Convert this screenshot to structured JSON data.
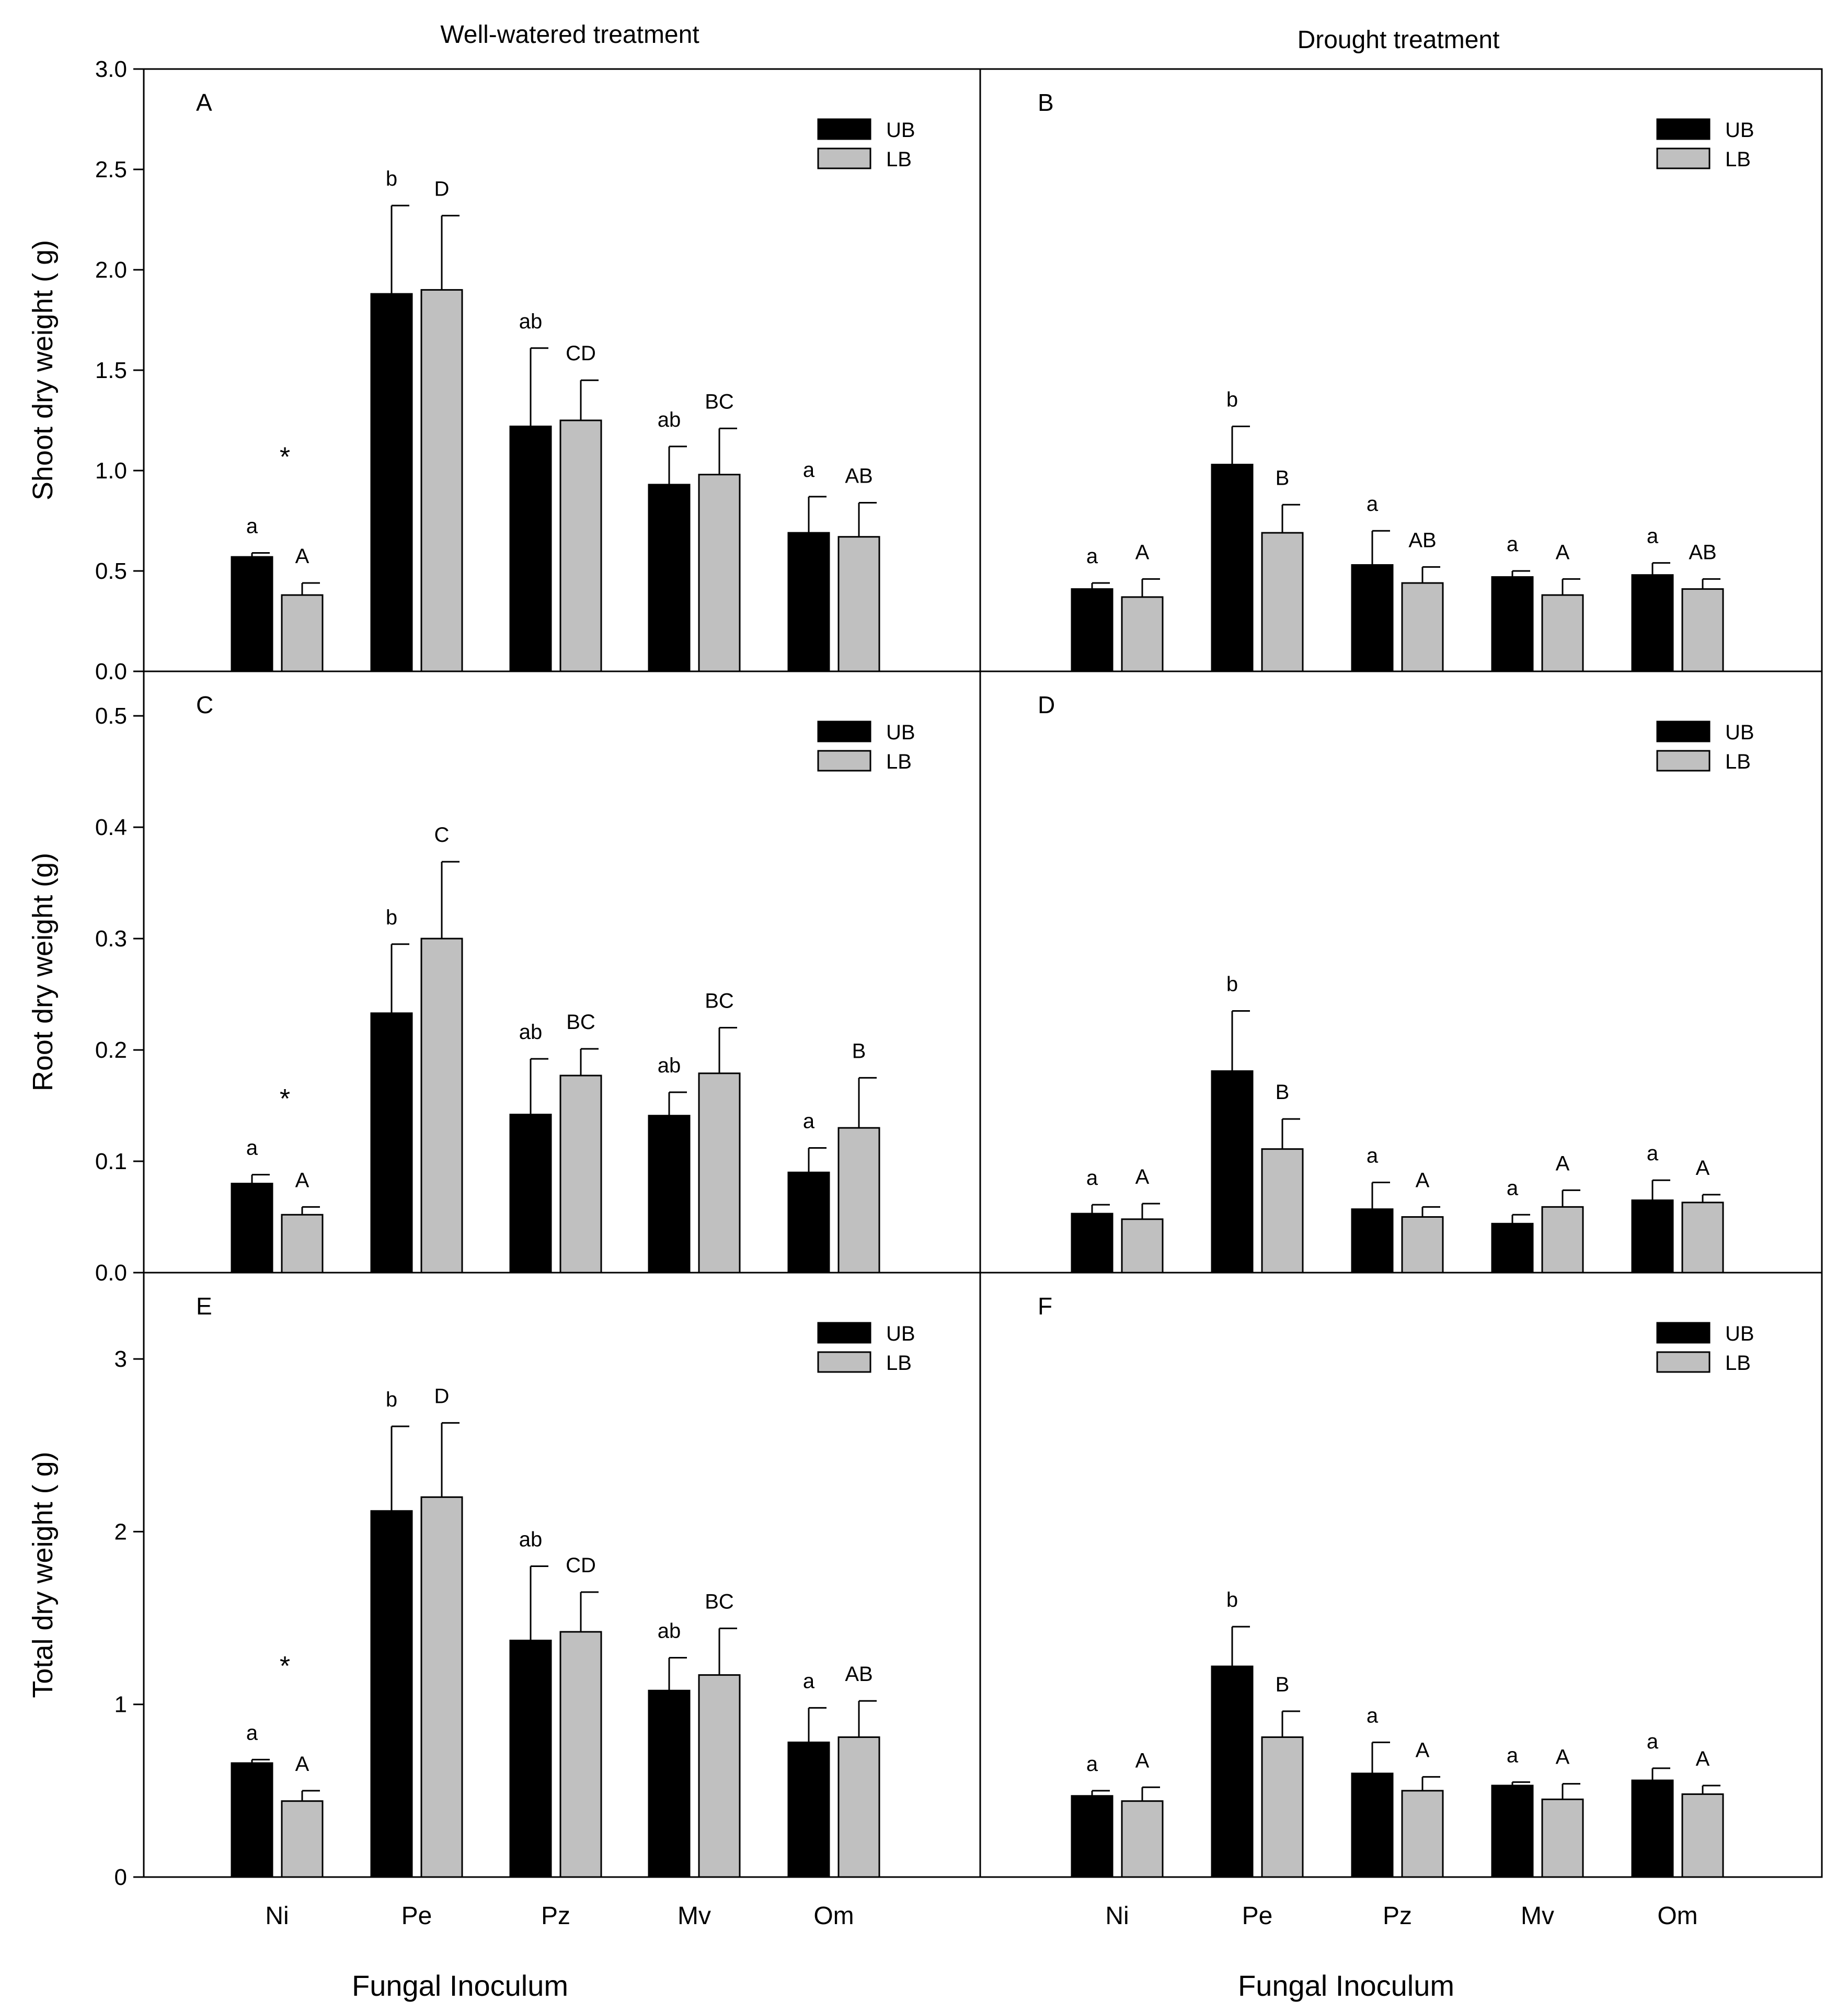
{
  "figure": {
    "column_titles": [
      "Well-watered treatment",
      "Drought treatment"
    ],
    "xlabel": "Fungal Inoculum",
    "categories": [
      "Ni",
      "Pe",
      "Pz",
      "Mv",
      "Om"
    ],
    "series_colors": {
      "UB": "#000000",
      "LB": "#c0c0c0"
    }
  },
  "chart_data": [
    {
      "type": "bar",
      "panel": "A",
      "title": "Well-watered treatment",
      "xlabel": "",
      "ylabel": "Shoot dry weight ( g)",
      "ylim": [
        0,
        3.0
      ],
      "yticks": [
        0.0,
        0.5,
        1.0,
        1.5,
        2.0,
        2.5,
        3.0
      ],
      "ytick_decimals": 1,
      "categories": [
        "Ni",
        "Pe",
        "Pz",
        "Mv",
        "Om"
      ],
      "legend": [
        "UB",
        "LB"
      ],
      "series": [
        {
          "name": "UB",
          "values": [
            0.57,
            1.88,
            1.22,
            0.93,
            0.69
          ],
          "errors": [
            0.02,
            0.44,
            0.39,
            0.19,
            0.18
          ],
          "labels": [
            "a",
            "b",
            "ab",
            "ab",
            "a"
          ]
        },
        {
          "name": "LB",
          "values": [
            0.38,
            1.9,
            1.25,
            0.98,
            0.67
          ],
          "errors": [
            0.06,
            0.37,
            0.2,
            0.23,
            0.17
          ],
          "labels": [
            "A",
            "D",
            "CD",
            "BC",
            "AB"
          ]
        }
      ],
      "star": {
        "category": "Ni",
        "text": "*",
        "y": 1.1
      }
    },
    {
      "type": "bar",
      "panel": "B",
      "title": "Drought treatment",
      "xlabel": "",
      "ylabel": "",
      "ylim": [
        0,
        3.0
      ],
      "yticks": [],
      "categories": [
        "Ni",
        "Pe",
        "Pz",
        "Mv",
        "Om"
      ],
      "legend": [
        "UB",
        "LB"
      ],
      "series": [
        {
          "name": "UB",
          "values": [
            0.41,
            1.03,
            0.53,
            0.47,
            0.48
          ],
          "errors": [
            0.03,
            0.19,
            0.17,
            0.03,
            0.06
          ],
          "labels": [
            "a",
            "b",
            "a",
            "a",
            "a"
          ]
        },
        {
          "name": "LB",
          "values": [
            0.37,
            0.69,
            0.44,
            0.38,
            0.41
          ],
          "errors": [
            0.09,
            0.14,
            0.08,
            0.08,
            0.05
          ],
          "labels": [
            "A",
            "B",
            "AB",
            "A",
            "AB"
          ]
        }
      ]
    },
    {
      "type": "bar",
      "panel": "C",
      "title": "",
      "xlabel": "",
      "ylabel": "Root dry weight (g)",
      "ylim": [
        0,
        0.54
      ],
      "yticks": [
        0.0,
        0.1,
        0.2,
        0.3,
        0.4,
        0.5
      ],
      "ytick_decimals": 1,
      "categories": [
        "Ni",
        "Pe",
        "Pz",
        "Mv",
        "Om"
      ],
      "legend": [
        "UB",
        "LB"
      ],
      "series": [
        {
          "name": "UB",
          "values": [
            0.08,
            0.233,
            0.142,
            0.141,
            0.09
          ],
          "errors": [
            0.008,
            0.062,
            0.05,
            0.021,
            0.022
          ],
          "labels": [
            "a",
            "b",
            "ab",
            "ab",
            "a"
          ]
        },
        {
          "name": "LB",
          "values": [
            0.052,
            0.3,
            0.177,
            0.179,
            0.13
          ],
          "errors": [
            0.007,
            0.069,
            0.024,
            0.041,
            0.045
          ],
          "labels": [
            "A",
            "C",
            "BC",
            "BC",
            "B"
          ]
        }
      ],
      "star": {
        "category": "Ni",
        "text": "*",
        "y": 0.162
      }
    },
    {
      "type": "bar",
      "panel": "D",
      "title": "",
      "xlabel": "",
      "ylabel": "",
      "ylim": [
        0,
        0.54
      ],
      "yticks": [],
      "categories": [
        "Ni",
        "Pe",
        "Pz",
        "Mv",
        "Om"
      ],
      "legend": [
        "UB",
        "LB"
      ],
      "series": [
        {
          "name": "UB",
          "values": [
            0.053,
            0.181,
            0.057,
            0.044,
            0.065
          ],
          "errors": [
            0.008,
            0.054,
            0.024,
            0.008,
            0.018
          ],
          "labels": [
            "a",
            "b",
            "a",
            "a",
            "a"
          ]
        },
        {
          "name": "LB",
          "values": [
            0.048,
            0.111,
            0.05,
            0.059,
            0.063
          ],
          "errors": [
            0.014,
            0.027,
            0.009,
            0.015,
            0.007
          ],
          "labels": [
            "A",
            "B",
            "A",
            "A",
            "A"
          ]
        }
      ]
    },
    {
      "type": "bar",
      "panel": "E",
      "title": "",
      "xlabel": "Fungal Inoculum",
      "ylabel": "Total dry weight  ( g)",
      "ylim": [
        0,
        3.5
      ],
      "yticks": [
        0,
        1,
        2,
        3
      ],
      "ytick_decimals": 0,
      "categories": [
        "Ni",
        "Pe",
        "Pz",
        "Mv",
        "Om"
      ],
      "legend": [
        "UB",
        "LB"
      ],
      "series": [
        {
          "name": "UB",
          "values": [
            0.66,
            2.12,
            1.37,
            1.08,
            0.78
          ],
          "errors": [
            0.02,
            0.49,
            0.43,
            0.19,
            0.2
          ],
          "labels": [
            "a",
            "b",
            "ab",
            "ab",
            "a"
          ]
        },
        {
          "name": "LB",
          "values": [
            0.44,
            2.2,
            1.42,
            1.17,
            0.81
          ],
          "errors": [
            0.06,
            0.43,
            0.23,
            0.27,
            0.21
          ],
          "labels": [
            "A",
            "D",
            "CD",
            "BC",
            "AB"
          ]
        }
      ],
      "star": {
        "category": "Ni",
        "text": "*",
        "y": 1.26
      }
    },
    {
      "type": "bar",
      "panel": "F",
      "title": "",
      "xlabel": "Fungal Inoculum",
      "ylabel": "",
      "ylim": [
        0,
        3.5
      ],
      "yticks": [],
      "categories": [
        "Ni",
        "Pe",
        "Pz",
        "Mv",
        "Om"
      ],
      "legend": [
        "UB",
        "LB"
      ],
      "series": [
        {
          "name": "UB",
          "values": [
            0.47,
            1.22,
            0.6,
            0.53,
            0.56
          ],
          "errors": [
            0.03,
            0.23,
            0.18,
            0.02,
            0.07
          ],
          "labels": [
            "a",
            "b",
            "a",
            "a",
            "a"
          ]
        },
        {
          "name": "LB",
          "values": [
            0.44,
            0.81,
            0.5,
            0.45,
            0.48
          ],
          "errors": [
            0.08,
            0.15,
            0.08,
            0.09,
            0.05
          ],
          "labels": [
            "A",
            "B",
            "A",
            "A",
            "A"
          ]
        }
      ]
    }
  ]
}
